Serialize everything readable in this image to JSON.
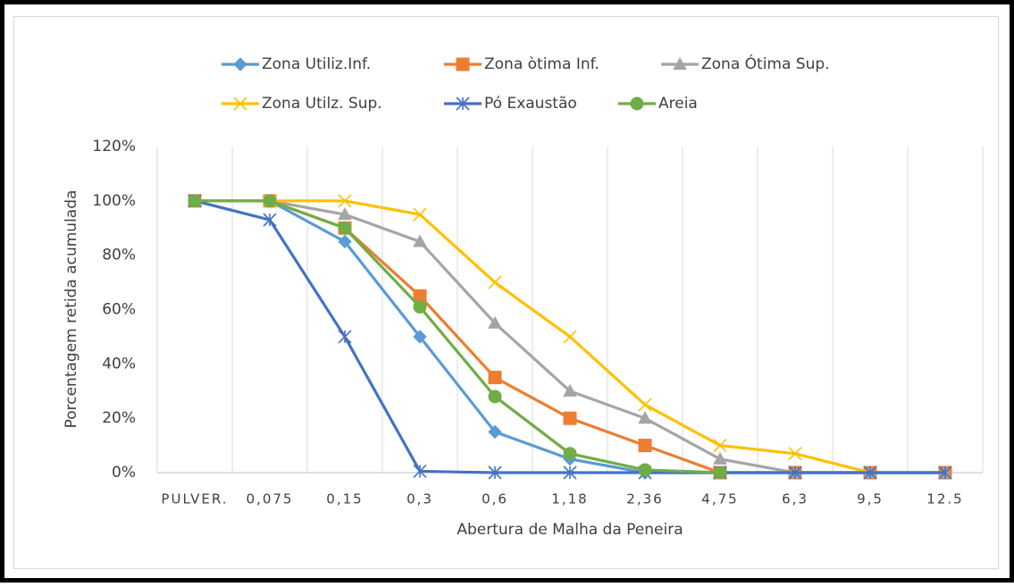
{
  "chart_data": {
    "type": "line",
    "x_label": "Abertura de Malha da Peneira",
    "y_label": "Porcentagem retida acumulada",
    "categories": [
      "PULVER.",
      "0,075",
      "0,15",
      "0,3",
      "0,6",
      "1,18",
      "2,36",
      "4,75",
      "6,3",
      "9,5",
      "12.5"
    ],
    "ylim": [
      0,
      120
    ],
    "yticks": [
      {
        "value": 0,
        "label": "0%"
      },
      {
        "value": 20,
        "label": "20%"
      },
      {
        "value": 40,
        "label": "40%"
      },
      {
        "value": 60,
        "label": "60%"
      },
      {
        "value": 80,
        "label": "80%"
      },
      {
        "value": 100,
        "label": "100%"
      },
      {
        "value": 120,
        "label": "120%"
      }
    ],
    "grid": "vertical",
    "legend": "top",
    "series": [
      {
        "name": "Zona Utiliz.Inf.",
        "color": "#5b9bd5",
        "marker": "diamond",
        "values": [
          100,
          100,
          85,
          50,
          15,
          5,
          0,
          0,
          0,
          0,
          0
        ]
      },
      {
        "name": "Zona òtima Inf.",
        "color": "#ed7d31",
        "marker": "square",
        "values": [
          100,
          100,
          90,
          65,
          35,
          20,
          10,
          0,
          0,
          0,
          0
        ]
      },
      {
        "name": "Zona Ótima Sup.",
        "color": "#a5a5a5",
        "marker": "triangle",
        "values": [
          100,
          100,
          95,
          85,
          55,
          30,
          20,
          5,
          0,
          0,
          0
        ]
      },
      {
        "name": "Zona Utilz. Sup.",
        "color": "#ffc000",
        "marker": "x",
        "values": [
          100,
          100,
          100,
          95,
          70,
          50,
          25,
          10,
          7,
          0,
          0
        ]
      },
      {
        "name": "Pó Exaustão",
        "color": "#4472c4",
        "marker": "star",
        "values": [
          100,
          93,
          50,
          0.5,
          0,
          0,
          0,
          0,
          0,
          0,
          0
        ]
      },
      {
        "name": "Areia",
        "color": "#70ad47",
        "marker": "circle",
        "values": [
          100,
          100,
          90,
          61,
          28,
          7,
          1,
          0,
          null,
          null,
          null
        ]
      }
    ]
  }
}
